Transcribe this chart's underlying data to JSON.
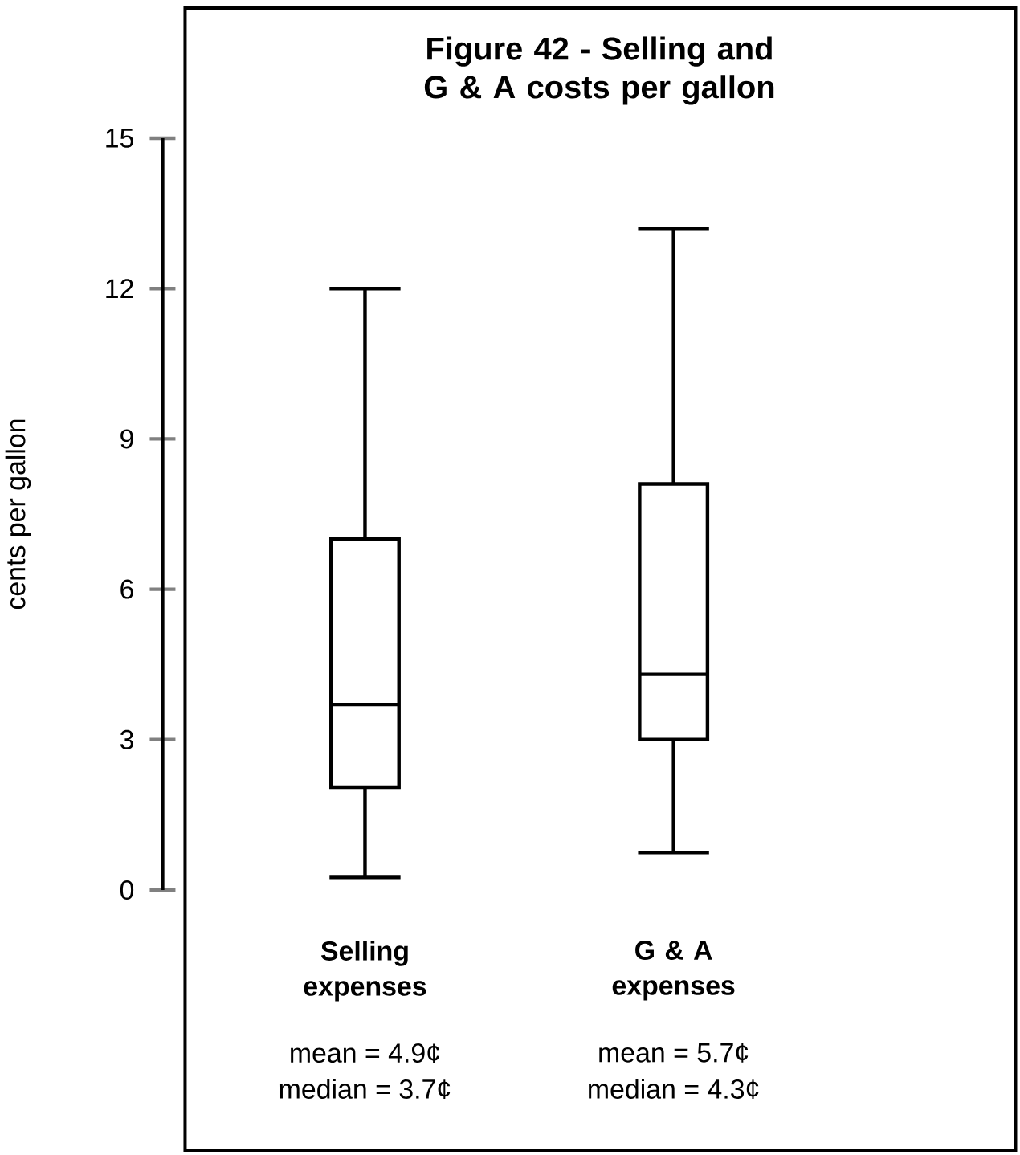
{
  "chart_data": {
    "type": "box",
    "title": "Figure 42 - Selling and G & A costs per gallon",
    "ylabel": "cents per gallon",
    "categories": [
      "Selling expenses",
      "G & A expenses"
    ],
    "boxes": [
      {
        "low": 0.25,
        "q1": 2.05,
        "median": 3.7,
        "q3": 7.0,
        "high": 12.0
      },
      {
        "low": 0.75,
        "q1": 3.0,
        "median": 4.3,
        "q3": 8.1,
        "high": 13.2
      }
    ],
    "color": "#000000",
    "ylim": [
      0,
      15
    ],
    "yticks": [
      0,
      3,
      6,
      9,
      12,
      15
    ],
    "annotations": [
      "mean = 4.9¢",
      "median = 3.7¢",
      "mean = 5.7¢",
      "median = 4.3¢"
    ]
  }
}
